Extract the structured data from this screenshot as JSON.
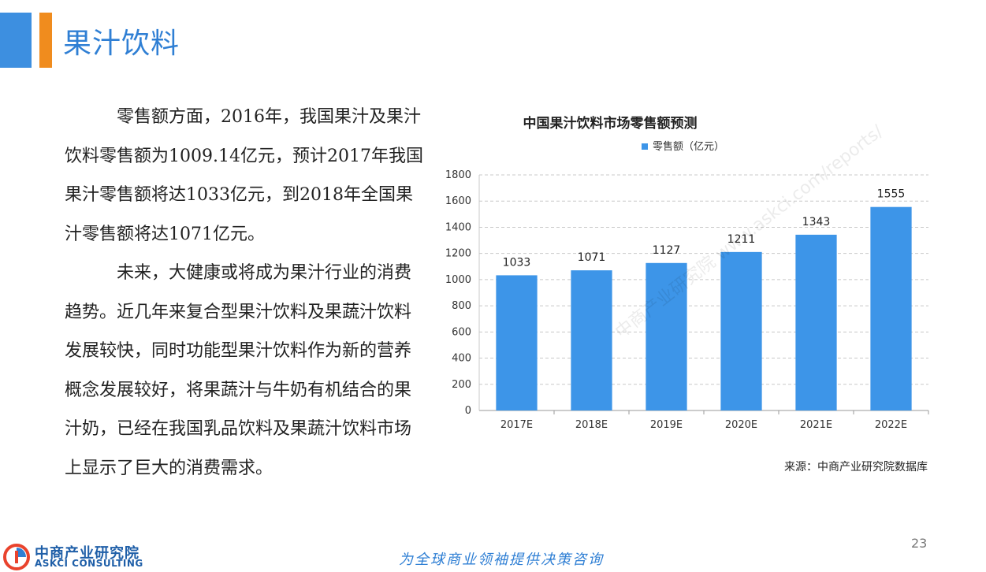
{
  "header": {
    "title": "果汁饮料"
  },
  "body": {
    "paragraphs": [
      "零售额方面，2016年，我国果汁及果汁饮料零售额为1009.14亿元，预计2017年我国果汁零售额将达1033亿元，到2018年全国果汁零售额将达1071亿元。",
      "未来，大健康或将成为果汁行业的消费趋势。近几年来复合型果汁饮料及果蔬汁饮料发展较快，同时功能型果汁饮料作为新的营养概念发展较好，将果蔬汁与牛奶有机结合的果汁奶，已经在我国乳品饮料及果蔬汁饮料市场上显示了巨大的消费需求。"
    ]
  },
  "chart_data": {
    "type": "bar",
    "title": "中国果汁饮料市场零售额预测",
    "legend": "零售额（亿元）",
    "legend_position": "top",
    "categories": [
      "2017E",
      "2018E",
      "2019E",
      "2020E",
      "2021E",
      "2022E"
    ],
    "values": [
      1033,
      1071,
      1127,
      1211,
      1343,
      1555
    ],
    "ylim": [
      0,
      1800
    ],
    "yticks": [
      "0",
      "200",
      "400",
      "600",
      "800",
      "1000",
      "1200",
      "1400",
      "1600",
      "1800"
    ],
    "grid": true,
    "bar_color": "#3d95e8",
    "watermark": "中商产业研究院 www.askci.com/reports/"
  },
  "source": "来源：中商产业研究院数据库",
  "page_number": "23",
  "footer": {
    "logo_cn": "中商产业研究院",
    "logo_en": "ASKCI CONSULTING",
    "slogan": "为全球商业领袖提供决策咨询"
  },
  "colors": {
    "accent_blue": "#3d8fe0",
    "accent_orange": "#f08c1e",
    "title_blue": "#2f7fd4"
  }
}
